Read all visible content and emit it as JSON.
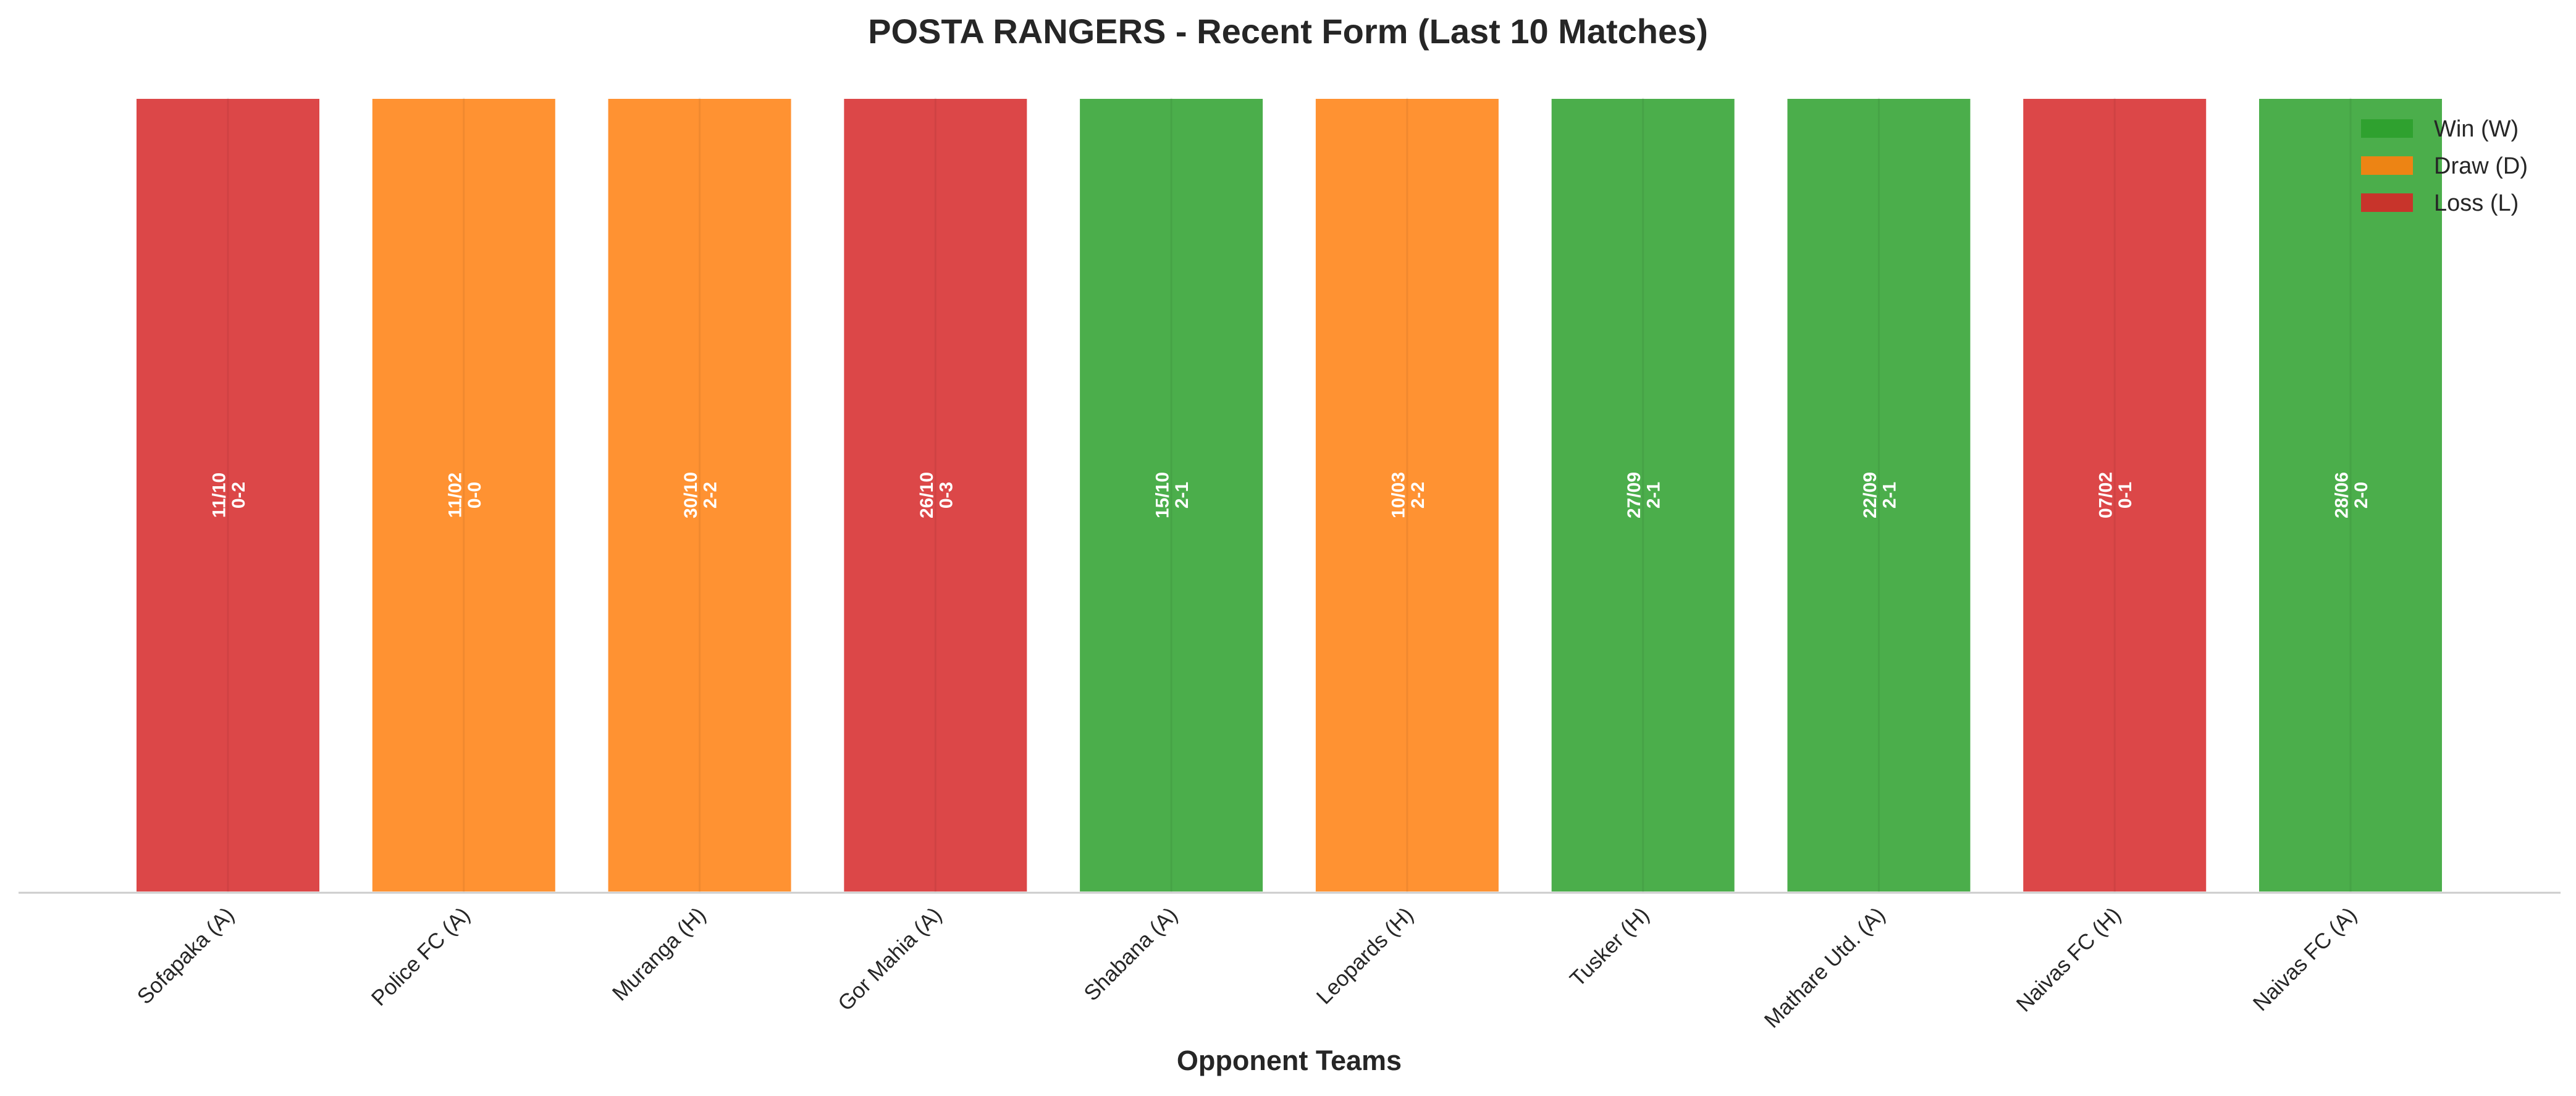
{
  "chart_data": {
    "type": "bar",
    "title": "POSTA RANGERS - Recent Form (Last 10 Matches)",
    "xlabel": "Opponent Teams",
    "ylabel": "",
    "ylim": [
      0,
      1
    ],
    "grid": false,
    "legend_position": "top-right",
    "categories": [
      "Sofapaka (A)",
      "Police FC (A)",
      "Muranga (H)",
      "Gor Mahia (A)",
      "Shabana (A)",
      "Leopards (H)",
      "Tusker (H)",
      "Mathare Utd. (A)",
      "Naivas FC (H)",
      "Naivas FC (A)"
    ],
    "values": [
      1,
      1,
      1,
      1,
      1,
      1,
      1,
      1,
      1,
      1
    ],
    "results": [
      "L",
      "D",
      "D",
      "L",
      "W",
      "D",
      "W",
      "W",
      "L",
      "W"
    ],
    "dates": [
      "11/10",
      "11/02",
      "30/10",
      "26/10",
      "15/10",
      "10/03",
      "27/09",
      "22/09",
      "07/02",
      "28/06"
    ],
    "scores": [
      "0-2",
      "0-0",
      "2-2",
      "0-3",
      "2-1",
      "2-2",
      "2-1",
      "2-1",
      "0-1",
      "2-0"
    ],
    "legend": [
      {
        "key": "W",
        "label": "Win (W)",
        "color": "#2ca02c"
      },
      {
        "key": "D",
        "label": "Draw (D)",
        "color": "#ff7f0e"
      },
      {
        "key": "L",
        "label": "Loss (L)",
        "color": "#d62728"
      }
    ]
  }
}
